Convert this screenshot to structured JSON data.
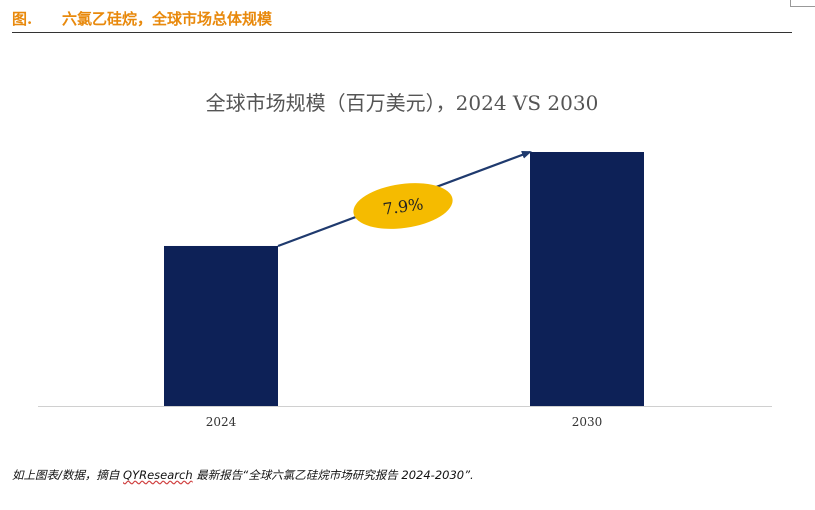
{
  "header": {
    "figure_label": "图.",
    "figure_title": "六氯乙硅烷，全球市场总体规模"
  },
  "chart_data": {
    "type": "bar",
    "title": "全球市场规模（百万美元），2024 VS 2030",
    "categories": [
      "2024",
      "2030"
    ],
    "values": [
      63,
      100
    ],
    "value_scale": "relative (unlabeled axis), 2030 = 100",
    "ylim": [
      0,
      100
    ],
    "xlabel": "",
    "ylabel": "",
    "grid": false,
    "bar_color": "#0d2157",
    "growth_annotation": {
      "label": "7.9%",
      "badge_color": "#f5bb00",
      "arrow_color": "#1f3a6e"
    }
  },
  "footer": {
    "note_prefix": "如上图表/数据，摘自 ",
    "brand": "QYResearch",
    "note_suffix": " 最新报告“全球六氯乙硅烷市场研究报告 2024-2030”."
  }
}
